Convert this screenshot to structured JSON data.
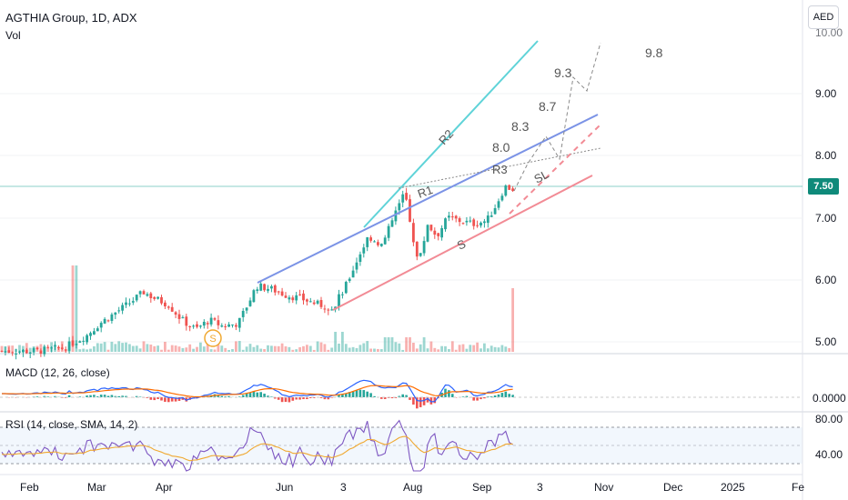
{
  "header": {
    "symbol_title": "AGTHIA Group, 1D, ADX",
    "volume_label": "Vol",
    "currency_button": "AED",
    "last_price": "7.50"
  },
  "price_axis": {
    "ticks": [
      "5.00",
      "6.00",
      "7.00",
      "8.00",
      "9.00"
    ],
    "top_partial": "10.00"
  },
  "macd": {
    "title": "MACD (12, 26, close)",
    "axis_label": "0.0000"
  },
  "rsi": {
    "title": "RSI (14, close, SMA, 14, 2)",
    "axis_ticks": [
      "80.00",
      "40.00"
    ]
  },
  "time_axis": {
    "labels": [
      "Feb",
      "Mar",
      "Apr",
      "Jun",
      "3",
      "Aug",
      "Sep",
      "3",
      "Nov",
      "Dec",
      "2025",
      "Fe"
    ]
  },
  "annotations": {
    "R1": "R1",
    "R2": "R2",
    "R3": "R3",
    "S": "S",
    "SL": "SL",
    "earnings_marker": "S",
    "targets": [
      "8.0",
      "8.3",
      "8.7",
      "9.3",
      "9.8"
    ]
  },
  "colors": {
    "up": "#26a69a",
    "down": "#ef5350",
    "channel_upper": "#7b93e6",
    "channel_lower": "#f28b95",
    "r2_line": "#5fd3d8",
    "macd_line": "#2962ff",
    "signal_line": "#ff6d00",
    "rsi_line": "#7e57c2",
    "rsi_ma": "#f0a830"
  },
  "chart_data": {
    "type": "candlestick",
    "title": "AGTHIA Group, 1D, ADX",
    "ylim": [
      4.75,
      10.1
    ],
    "close_approx": [
      [
        "Feb",
        4.85
      ],
      [
        "Mar",
        5.4
      ],
      [
        "Mar mid",
        5.8
      ],
      [
        "Apr",
        5.6
      ],
      [
        "Apr end",
        5.3
      ],
      [
        "May",
        5.3
      ],
      [
        "Jun",
        5.9
      ],
      [
        "Jun mid",
        5.75
      ],
      [
        "3",
        5.6
      ],
      [
        "Jul",
        6.6
      ],
      [
        "Jul end",
        7.35
      ],
      [
        "Aug",
        6.3
      ],
      [
        "Aug mid",
        7.1
      ],
      [
        "Sep",
        6.85
      ],
      [
        "Sep mid",
        7.55
      ]
    ],
    "last": 7.5,
    "targets": [
      8.0,
      8.3,
      8.7,
      9.3,
      9.8
    ]
  }
}
